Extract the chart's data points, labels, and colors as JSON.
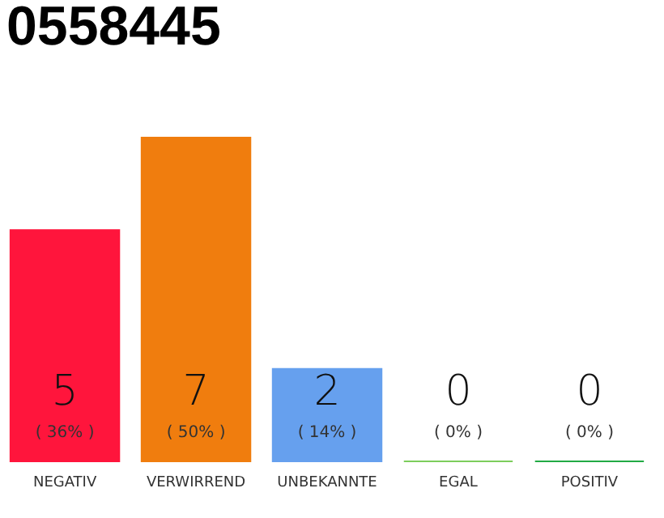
{
  "chart_data": {
    "type": "bar",
    "title": "0558445",
    "categories": [
      "NEGATIV",
      "VERWIRREND",
      "UNBEKANNTE",
      "EGAL",
      "POSITIV"
    ],
    "values": [
      5,
      7,
      2,
      0,
      0
    ],
    "colors": [
      "#ff153c",
      "#f07d0e",
      "#66a0ee",
      "#7ccd5c",
      "#22aa44"
    ],
    "value_labels": [
      "5",
      "7",
      "2",
      "0",
      "0"
    ],
    "annotations": [
      "( 36% )",
      "( 50% )",
      "( 14% )",
      "( 0% )",
      "( 0% )"
    ],
    "tick_labels": "x",
    "grid": false
  }
}
